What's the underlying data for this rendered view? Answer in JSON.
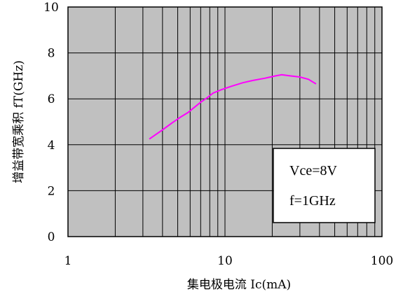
{
  "chart_data": {
    "type": "line",
    "title": "",
    "xlabel": "集电极电流 Ic(mA)",
    "ylabel": "增益带宽乘积 fT(GHz)",
    "x_scale": "log",
    "xlim": [
      1,
      100
    ],
    "ylim": [
      0,
      10
    ],
    "x_ticks": [
      "1",
      "10",
      "100"
    ],
    "y_ticks": [
      "0",
      "2",
      "4",
      "6",
      "8",
      "10"
    ],
    "grid": true,
    "background_color": "#c0c0c0",
    "series": [
      {
        "color": "#ff00ff",
        "x": [
          3.3,
          4.0,
          4.6,
          5.2,
          5.8,
          6.3,
          7.0,
          7.7,
          8.4,
          9.5,
          11,
          13,
          15,
          18,
          21,
          23,
          26,
          30,
          34,
          38
        ],
        "y": [
          4.25,
          4.65,
          4.95,
          5.2,
          5.4,
          5.6,
          5.85,
          6.05,
          6.25,
          6.4,
          6.55,
          6.7,
          6.8,
          6.9,
          7.0,
          7.05,
          7.0,
          6.95,
          6.85,
          6.65
        ]
      }
    ],
    "legend_box": {
      "placement": "bottom-right",
      "lines": [
        "Vce=8V",
        "f=1GHz"
      ]
    }
  }
}
